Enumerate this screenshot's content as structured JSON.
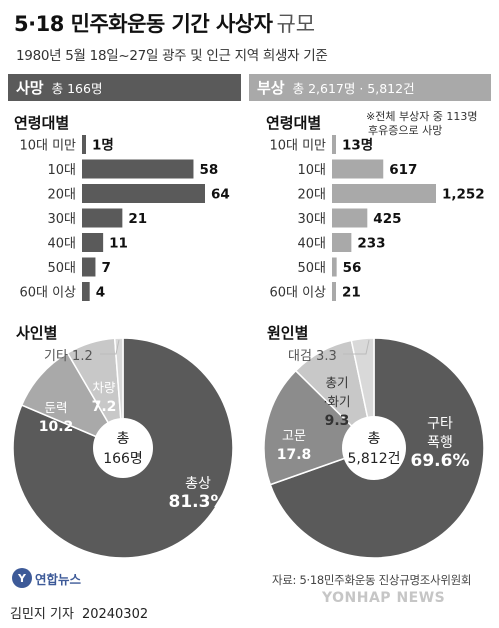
{
  "title": {
    "main": "5·18 민주화운동 기간 사상자",
    "suffix": "규모"
  },
  "subtitle": "1980년 5월 18일~27일 광주 및 인근 지역 희생자 기준",
  "death_header": {
    "label": "사망",
    "total": "총 166명"
  },
  "injury_header": {
    "label": "부상",
    "total": "총 2,617명 · 5,812건"
  },
  "age_title_death": "연령대별",
  "age_title_injury": "연령대별",
  "injury_note": [
    "※전체 부상자 중 113명",
    "후유증으로 사망"
  ],
  "cause_title": "사인별",
  "means_title": "원인별",
  "cause_center": [
    "총",
    "166명"
  ],
  "means_center": [
    "총",
    "5,812건"
  ],
  "source": "자료: 5·18민주화운동 진상규명조사위원회",
  "logo_text": "연합뉴스",
  "logo_mark": "Y",
  "credit": {
    "author": "김민지 기자",
    "date": "20240302"
  },
  "watermark": "YONHAP NEWS",
  "colors": {
    "dark": "#5a5a5a",
    "light": "#a9a9a9",
    "mid": "#8c8c8c",
    "pale": "#c8c8c8",
    "paler": "#d9d9d9"
  },
  "chart_data": [
    {
      "type": "bar",
      "title": "연령대별",
      "categories": [
        "10대 미만",
        "10대",
        "20대",
        "30대",
        "40대",
        "50대",
        "60대 이상"
      ],
      "values": [
        1,
        58,
        64,
        21,
        11,
        7,
        4
      ],
      "labels": [
        "1명",
        "58",
        "64",
        "21",
        "11",
        "7",
        "4"
      ]
    },
    {
      "type": "bar",
      "title": "연령대별",
      "categories": [
        "10대 미만",
        "10대",
        "20대",
        "30대",
        "40대",
        "50대",
        "60대 이상"
      ],
      "values": [
        13,
        617,
        1252,
        425,
        233,
        56,
        21
      ],
      "labels": [
        "13명",
        "617",
        "1,252",
        "425",
        "233",
        "56",
        "21"
      ]
    },
    {
      "type": "pie",
      "title": "사인별",
      "categories": [
        "총상",
        "둔력",
        "차량",
        "기타"
      ],
      "values": [
        81.3,
        10.2,
        7.2,
        1.2
      ]
    },
    {
      "type": "pie",
      "title": "원인별",
      "categories": [
        "구타 폭행",
        "고문",
        "총기·화기",
        "대검"
      ],
      "values": [
        69.6,
        17.8,
        9.3,
        3.3
      ]
    }
  ]
}
